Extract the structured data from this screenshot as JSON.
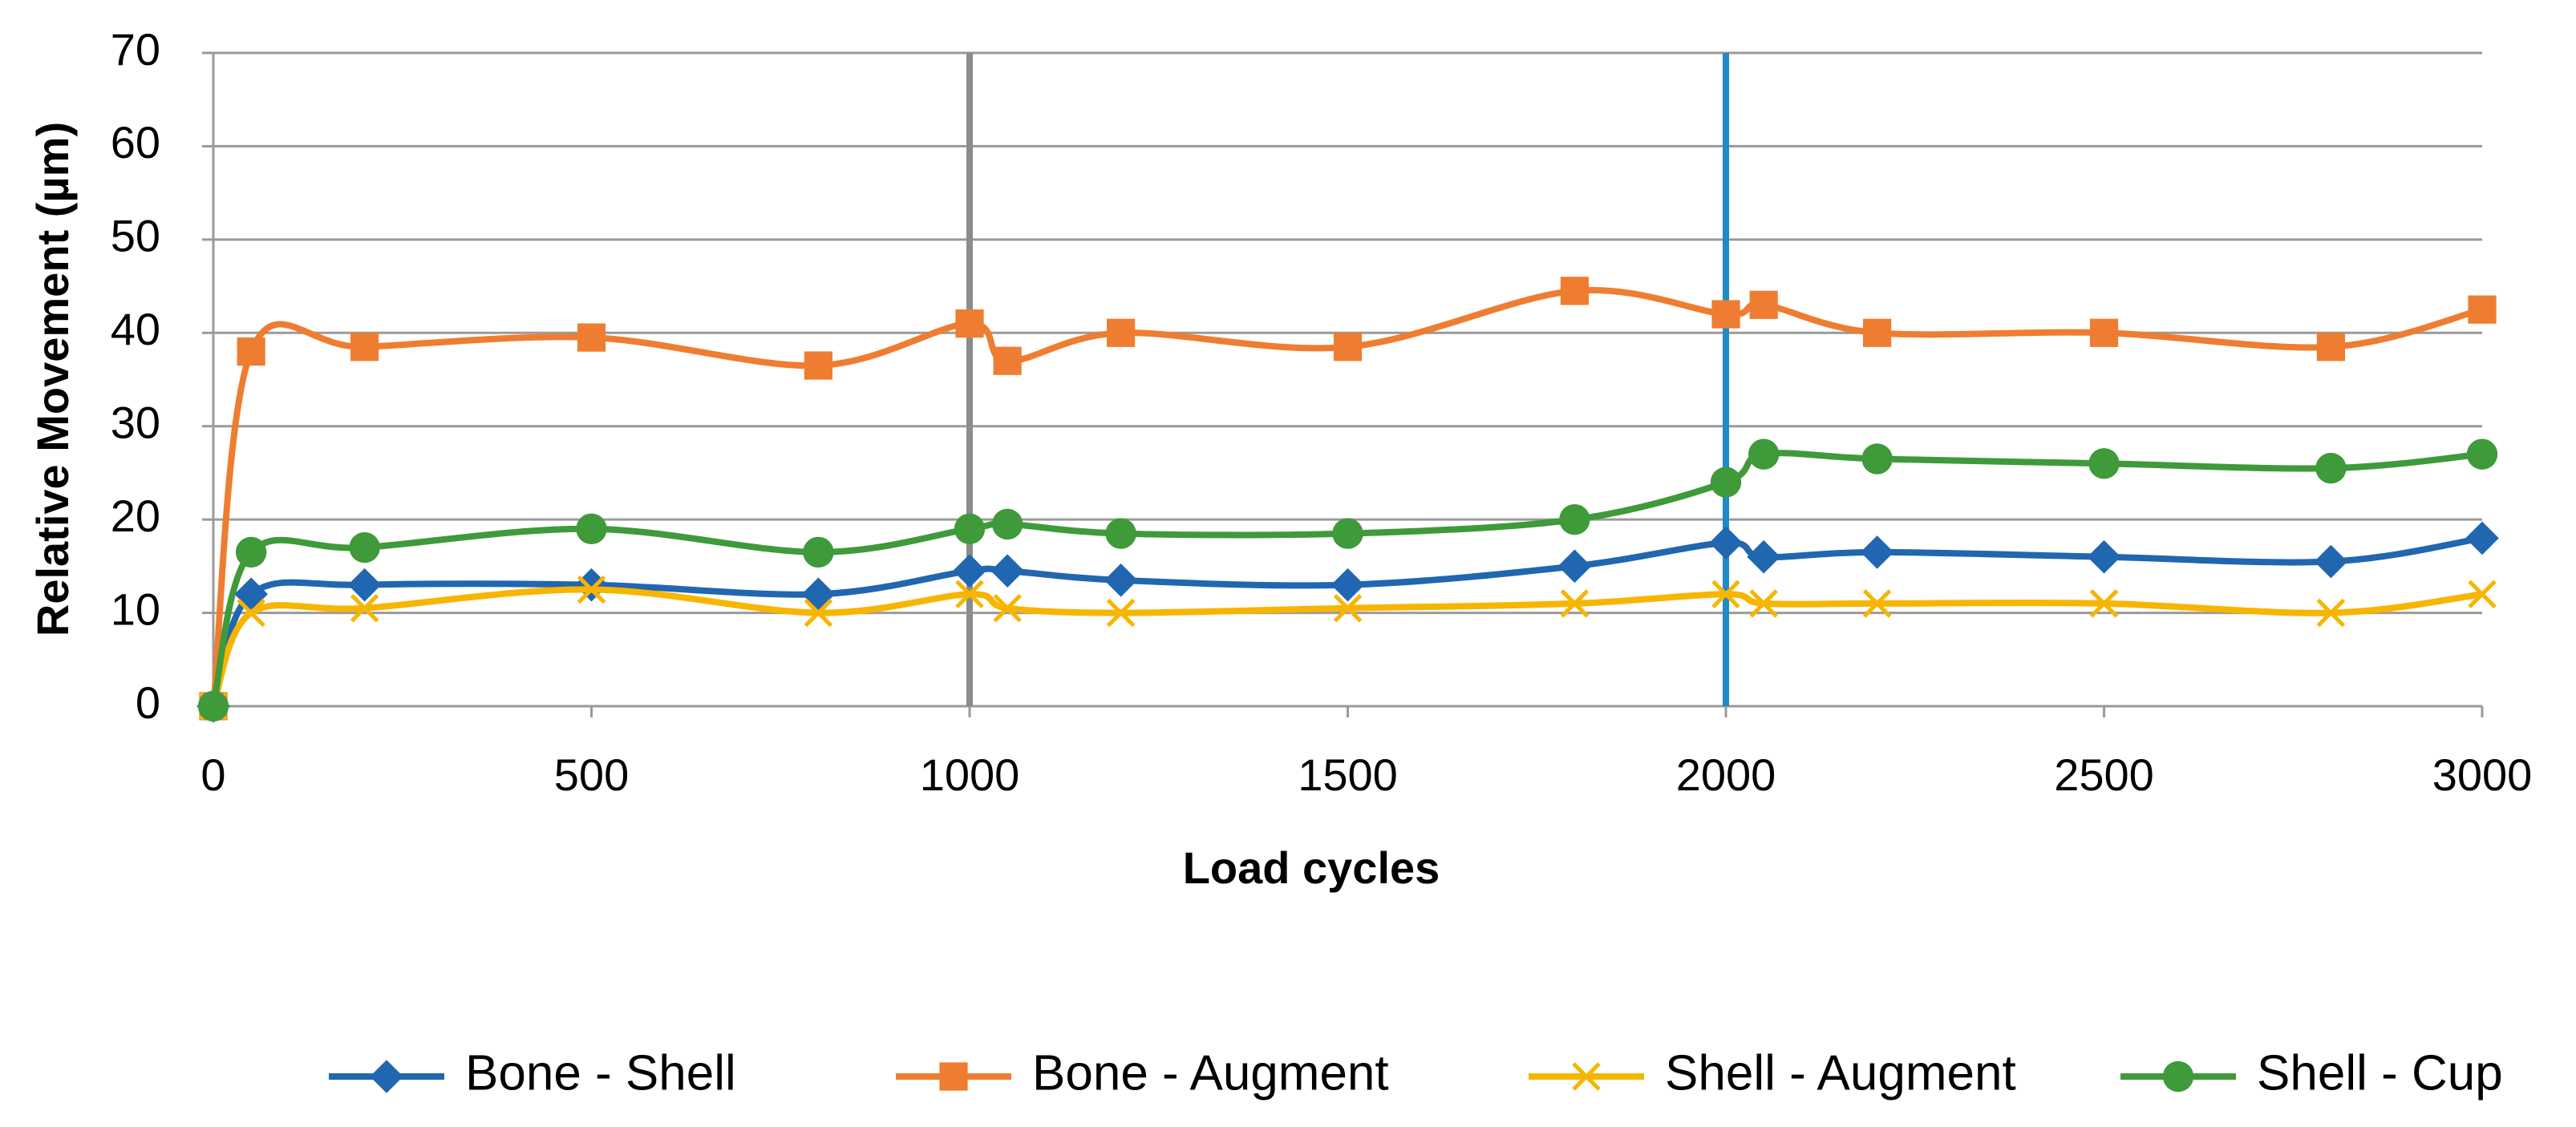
{
  "chart_data": {
    "type": "line",
    "xlabel": "Load cycles",
    "ylabel": "Relative Movement (µm)",
    "x": [
      0,
      50,
      200,
      500,
      800,
      1000,
      1050,
      1200,
      1500,
      1800,
      2000,
      2050,
      2200,
      2500,
      2800,
      3000
    ],
    "series": [
      {
        "name": "Bone - Shell",
        "color": "#2166b0",
        "marker": "diamond",
        "values": [
          0,
          12,
          13,
          13,
          12,
          14.5,
          14.5,
          13.5,
          13,
          15,
          17.5,
          16,
          16.5,
          16,
          15.5,
          18
        ]
      },
      {
        "name": "Bone - Augment",
        "color": "#ef7d31",
        "marker": "square",
        "values": [
          0,
          38,
          38.5,
          39.5,
          36.5,
          41,
          37,
          40,
          38.5,
          44.5,
          42,
          43,
          40,
          40,
          38.5,
          42.5
        ]
      },
      {
        "name": "Shell - Augment",
        "color": "#f7b500",
        "marker": "x",
        "values": [
          0,
          10,
          10.5,
          12.5,
          10,
          12,
          10.5,
          10,
          10.5,
          11,
          12,
          11,
          11,
          11,
          10,
          12
        ]
      },
      {
        "name": "Shell - Cup",
        "color": "#3f9a3a",
        "marker": "circle",
        "values": [
          0,
          16.5,
          17,
          19,
          16.5,
          19,
          19.5,
          18.5,
          18.5,
          20,
          24,
          27,
          26.5,
          26,
          25.5,
          27
        ]
      }
    ],
    "vlines": [
      {
        "x": 1000,
        "color": "#8c8c8c"
      },
      {
        "x": 2000,
        "color": "#1f8ac6"
      }
    ],
    "xlim": [
      0,
      3000
    ],
    "xticks": [
      0,
      500,
      1000,
      1500,
      2000,
      2500,
      3000
    ],
    "ylim": [
      0,
      70
    ],
    "yticks": [
      0,
      10,
      20,
      30,
      40,
      50,
      60,
      70
    ],
    "grid": true,
    "legend": "bottom"
  }
}
